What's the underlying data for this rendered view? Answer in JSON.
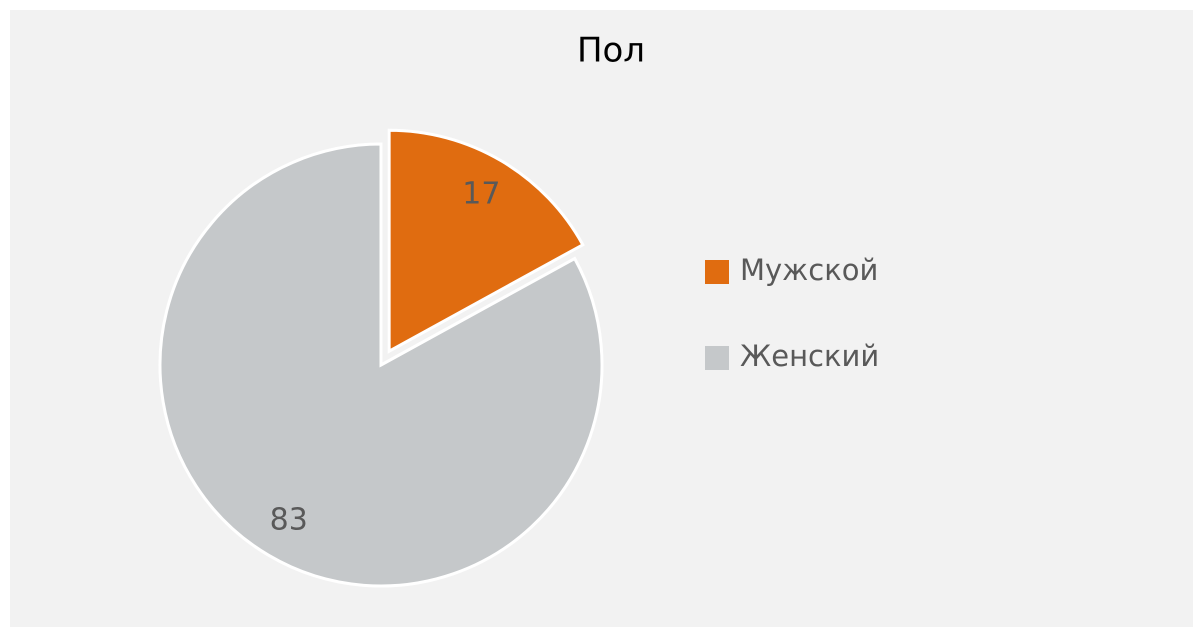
{
  "chart_data": {
    "type": "pie",
    "title": "Пол",
    "categories": [
      "Мужской",
      "Женский"
    ],
    "values": [
      17,
      83
    ],
    "colors": [
      "#e06c10",
      "#c5c8ca"
    ],
    "legend": "right"
  }
}
